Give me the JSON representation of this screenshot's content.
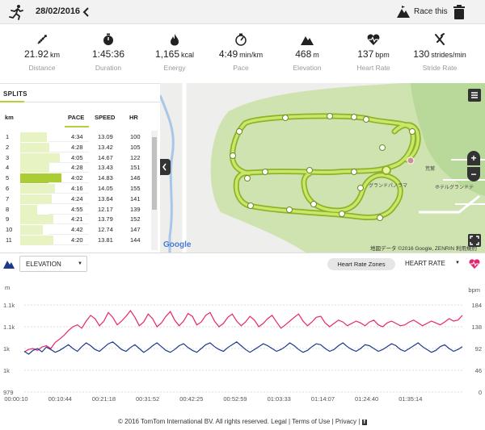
{
  "header": {
    "date": "28/02/2016",
    "race_label": "Race this"
  },
  "stats": [
    {
      "icon": "distance-icon",
      "value": "21.92",
      "unit": "km",
      "label": "Distance"
    },
    {
      "icon": "stopwatch-icon",
      "value": "1:45:36",
      "unit": "",
      "label": "Duration"
    },
    {
      "icon": "flame-icon",
      "value": "1,165",
      "unit": "kcal",
      "label": "Energy"
    },
    {
      "icon": "gauge-icon",
      "value": "4:49",
      "unit": "min/km",
      "label": "Pace"
    },
    {
      "icon": "mountain-icon",
      "value": "468",
      "unit": "m",
      "label": "Elevation"
    },
    {
      "icon": "heart-rate-icon",
      "value": "137",
      "unit": "bpm",
      "label": "Heart Rate"
    },
    {
      "icon": "stride-icon",
      "value": "130",
      "unit": "strides/min",
      "label": "Stride Rate"
    }
  ],
  "splits": {
    "tab": "SPLITS",
    "columns": [
      "km",
      "PACE",
      "SPEED",
      "HR"
    ],
    "rows": [
      {
        "km": "1",
        "pace": "4:34",
        "speed": "13.09",
        "hr": "100",
        "fill": 0.55
      },
      {
        "km": "2",
        "pace": "4:28",
        "speed": "13.42",
        "hr": "105",
        "fill": 0.6
      },
      {
        "km": "3",
        "pace": "4:05",
        "speed": "14.67",
        "hr": "122",
        "fill": 0.82
      },
      {
        "km": "4",
        "pace": "4:28",
        "speed": "13.43",
        "hr": "151",
        "fill": 0.6
      },
      {
        "km": "5",
        "pace": "4:02",
        "speed": "14.83",
        "hr": "146",
        "fill": 0.85
      },
      {
        "km": "6",
        "pace": "4:16",
        "speed": "14.05",
        "hr": "155",
        "fill": 0.72
      },
      {
        "km": "7",
        "pace": "4:24",
        "speed": "13.64",
        "hr": "141",
        "fill": 0.65
      },
      {
        "km": "8",
        "pace": "4:55",
        "speed": "12.17",
        "hr": "139",
        "fill": 0.35
      },
      {
        "km": "9",
        "pace": "4:21",
        "speed": "13.79",
        "hr": "152",
        "fill": 0.68
      },
      {
        "km": "10",
        "pace": "4:42",
        "speed": "12.74",
        "hr": "147",
        "fill": 0.47
      },
      {
        "km": "11",
        "pace": "4:20",
        "speed": "13.81",
        "hr": "144",
        "fill": 0.69
      }
    ],
    "highlight_row": 5
  },
  "map": {
    "attribution": "地図データ ©2016 Google, ZENRIN",
    "terms": "利用規約",
    "logo": "Google",
    "place_1": "荒鷲",
    "place_2": "グランドパノラマ",
    "place_3": "ホテルグランドテ",
    "zoom_in": "+",
    "zoom_out": "−",
    "route_color": "#b3d334",
    "park_color": "#cfe3b0"
  },
  "controls": {
    "left_metric": "ELEVATION",
    "zones_button": "Heart Rate Zones",
    "right_metric": "HEART RATE"
  },
  "chart_data": {
    "type": "line",
    "left_axis_unit": "m",
    "right_axis_unit": "bpm",
    "left_ticks": [
      "1.1k",
      "1.1k",
      "1k",
      "1k",
      "979"
    ],
    "right_ticks": [
      "184",
      "138",
      "92",
      "46",
      "0"
    ],
    "x_ticks": [
      "00:00:10",
      "00:10:44",
      "00:21:18",
      "00:31:52",
      "00:42:25",
      "00:52:59",
      "01:03:33",
      "01:14:07",
      "01:24:40",
      "01:35:14"
    ],
    "y_right_range": [
      0,
      184
    ],
    "series": [
      {
        "color": "#e8246f",
        "axis": "right",
        "values": [
          85,
          90,
          92,
          88,
          95,
          98,
          92,
          105,
          112,
          120,
          130,
          138,
          142,
          135,
          150,
          162,
          155,
          140,
          150,
          168,
          158,
          142,
          150,
          160,
          172,
          158,
          140,
          148,
          165,
          155,
          138,
          146,
          160,
          170,
          152,
          140,
          150,
          166,
          160,
          142,
          148,
          162,
          168,
          150,
          138,
          145,
          158,
          165,
          150,
          140,
          148,
          160,
          152,
          138,
          145,
          155,
          162,
          148,
          135,
          142,
          150,
          158,
          165,
          150,
          140,
          148,
          158,
          160,
          146,
          138,
          145,
          152,
          148,
          140,
          145,
          150,
          146,
          140,
          148,
          152,
          142,
          138,
          146,
          150,
          145,
          140,
          142,
          148,
          152,
          146,
          140,
          145,
          150,
          146,
          142,
          148,
          155,
          150,
          152,
          162
        ]
      },
      {
        "color": "#1d3a8a",
        "axis": "right",
        "values": [
          86,
          80,
          88,
          92,
          85,
          95,
          90,
          84,
          88,
          94,
          100,
          92,
          86,
          96,
          104,
          98,
          90,
          86,
          94,
          102,
          106,
          98,
          90,
          86,
          94,
          100,
          92,
          84,
          90,
          98,
          104,
          96,
          88,
          84,
          90,
          98,
          102,
          94,
          88,
          84,
          92,
          100,
          104,
          96,
          90,
          86,
          94,
          100,
          106,
          98,
          90,
          84,
          90,
          96,
          102,
          98,
          92,
          86,
          90,
          96,
          104,
          98,
          90,
          84,
          88,
          96,
          102,
          100,
          92,
          86,
          90,
          98,
          104,
          96,
          90,
          86,
          92,
          100,
          98,
          92,
          86,
          90,
          96,
          102,
          98,
          90,
          86,
          92,
          98,
          104,
          96,
          90,
          84,
          88,
          96,
          100,
          92,
          86,
          90,
          96
        ]
      }
    ]
  },
  "footer": {
    "copyright": "© 2016 TomTom International BV. All rights reserved.",
    "legal": "Legal",
    "sep": "|",
    "terms": "Terms of Use",
    "privacy": "Privacy",
    "fb": "f"
  }
}
